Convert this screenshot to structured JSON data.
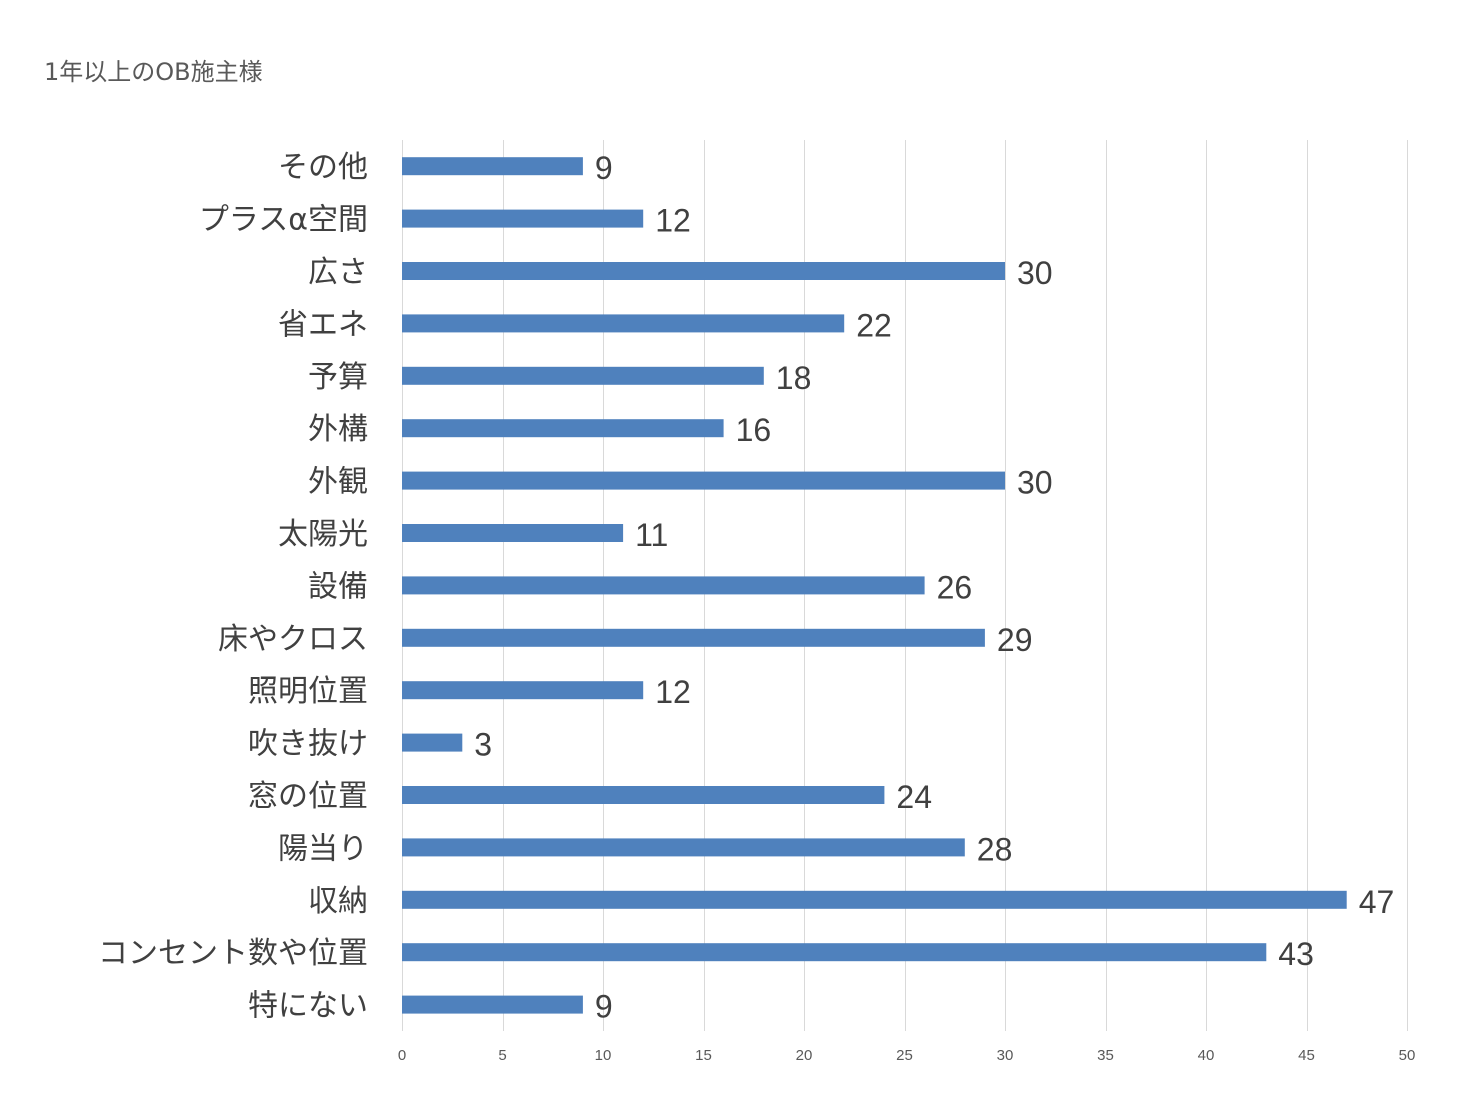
{
  "chart_data": {
    "type": "bar",
    "orientation": "horizontal",
    "title": "1年以上のOB施主様",
    "categories": [
      "その他",
      "プラスα空間",
      "広さ",
      "省エネ",
      "予算",
      "外構",
      "外観",
      "太陽光",
      "設備",
      "床やクロス",
      "照明位置",
      "吹き抜け",
      "窓の位置",
      "陽当り",
      "収納",
      "コンセント数や位置",
      "特にない"
    ],
    "values": [
      9,
      12,
      30,
      22,
      18,
      16,
      30,
      11,
      26,
      29,
      12,
      3,
      24,
      28,
      47,
      43,
      9
    ],
    "xticks": [
      "0",
      "5",
      "10",
      "15",
      "20",
      "25",
      "30",
      "35",
      "40",
      "45",
      "50"
    ],
    "xlim": [
      0,
      50
    ],
    "grid": "vertical",
    "legend": "none",
    "bar_color": "#4f81bd"
  }
}
